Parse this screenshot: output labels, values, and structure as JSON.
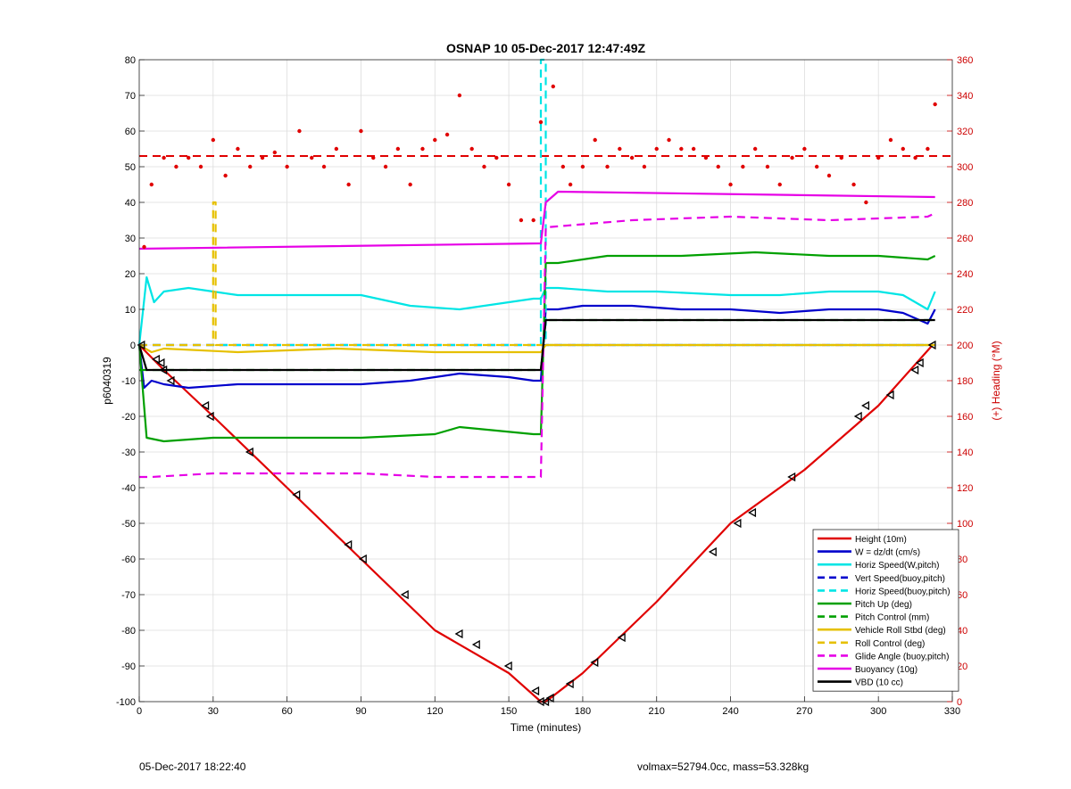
{
  "chart_data": {
    "type": "line",
    "title": "OSNAP 10 05-Dec-2017 12:47:49Z",
    "xlabel": "Time (minutes)",
    "ylabel": "p6040319",
    "ylabel_right": "(+) Heading (°M)",
    "xlim": [
      0,
      330
    ],
    "ylim": [
      -100,
      80
    ],
    "ylim_right": [
      0,
      360
    ],
    "xticks": [
      0,
      30,
      60,
      90,
      120,
      150,
      180,
      210,
      240,
      270,
      300,
      330
    ],
    "yticks": [
      -100,
      -90,
      -80,
      -70,
      -60,
      -50,
      -40,
      -30,
      -20,
      -10,
      0,
      10,
      20,
      30,
      40,
      50,
      60,
      70,
      80
    ],
    "yticks_right": [
      0,
      20,
      40,
      60,
      80,
      100,
      120,
      140,
      160,
      180,
      200,
      220,
      240,
      260,
      280,
      300,
      320,
      340,
      360
    ],
    "grid": true,
    "legend_position": "bottom-right",
    "colors": {
      "red": "#e00000",
      "blue": "#0000cc",
      "cyan": "#00e5e5",
      "green": "#00a000",
      "yellow": "#e6c000",
      "magenta": "#e600e6",
      "black": "#000000",
      "right_axis": "#cc0000"
    },
    "series": [
      {
        "name": "Height (10m)",
        "color": "red",
        "style": "solid",
        "x": [
          0,
          10,
          30,
          60,
          90,
          120,
          150,
          163,
          165,
          180,
          210,
          240,
          270,
          300,
          322
        ],
        "y": [
          0,
          -7,
          -20,
          -40,
          -60,
          -80,
          -92,
          -100,
          -100,
          -92,
          -72,
          -50,
          -35,
          -17,
          0
        ]
      },
      {
        "name": "W = dz/dt (cm/s)",
        "color": "blue",
        "style": "solid",
        "x": [
          0,
          2,
          5,
          10,
          20,
          40,
          60,
          90,
          110,
          130,
          150,
          160,
          163,
          165,
          170,
          180,
          200,
          220,
          240,
          260,
          280,
          300,
          310,
          320,
          323
        ],
        "y": [
          0,
          -12,
          -10,
          -11,
          -12,
          -11,
          -11,
          -11,
          -10,
          -8,
          -9,
          -10,
          -10,
          10,
          10,
          11,
          11,
          10,
          10,
          9,
          10,
          10,
          9,
          6,
          10
        ]
      },
      {
        "name": "Horiz Speed(W,pitch)",
        "color": "cyan",
        "style": "solid",
        "x": [
          0,
          3,
          6,
          10,
          20,
          40,
          60,
          90,
          110,
          130,
          150,
          160,
          163,
          165,
          170,
          190,
          210,
          240,
          260,
          280,
          300,
          310,
          320,
          323
        ],
        "y": [
          0,
          19,
          12,
          15,
          16,
          14,
          14,
          14,
          11,
          10,
          12,
          13,
          13,
          16,
          16,
          15,
          15,
          14,
          14,
          15,
          15,
          14,
          10,
          15
        ]
      },
      {
        "name": "Vert Speed(buoy,pitch)",
        "color": "blue",
        "style": "dashed",
        "x": [
          0,
          163,
          165,
          323
        ],
        "y": [
          0,
          0,
          0,
          0
        ]
      },
      {
        "name": "Horiz Speed(buoy,pitch)",
        "color": "cyan",
        "style": "dashed",
        "x": [
          0,
          163,
          163,
          165,
          165,
          323
        ],
        "y": [
          0,
          0,
          80,
          80,
          0,
          0
        ]
      },
      {
        "name": "Pitch Up (deg)",
        "color": "green",
        "style": "solid",
        "x": [
          0,
          3,
          10,
          30,
          60,
          90,
          120,
          130,
          160,
          163,
          165,
          170,
          190,
          220,
          250,
          280,
          300,
          320,
          323
        ],
        "y": [
          0,
          -26,
          -27,
          -26,
          -26,
          -26,
          -25,
          -23,
          -25,
          -25,
          23,
          23,
          25,
          25,
          26,
          25,
          25,
          24,
          25
        ]
      },
      {
        "name": "Pitch Control (mm)",
        "color": "green",
        "style": "dashed",
        "x": [
          0,
          5,
          163,
          165,
          323
        ],
        "y": [
          -7,
          -7,
          -7,
          7,
          7
        ]
      },
      {
        "name": "Vehicle Roll Stbd (deg)",
        "color": "yellow",
        "style": "solid",
        "x": [
          0,
          5,
          10,
          40,
          80,
          120,
          160,
          163,
          165,
          200,
          240,
          280,
          320,
          323
        ],
        "y": [
          0,
          -2,
          -1,
          -2,
          -1,
          -2,
          -2,
          -2,
          0,
          0,
          0,
          0,
          0,
          0
        ]
      },
      {
        "name": "Roll Control (deg)",
        "color": "yellow",
        "style": "dashed",
        "x": [
          0,
          30,
          30,
          31,
          31,
          163,
          165,
          323
        ],
        "y": [
          0,
          0,
          40,
          40,
          0,
          0,
          0,
          0
        ]
      },
      {
        "name": "Glide Angle (buoy,pitch)",
        "color": "magenta",
        "style": "dashed",
        "x": [
          0,
          5,
          30,
          60,
          90,
          120,
          160,
          163,
          165,
          200,
          240,
          280,
          320,
          323
        ],
        "y": [
          -37,
          -37,
          -36,
          -36,
          -36,
          -37,
          -37,
          -37,
          33,
          35,
          36,
          35,
          36,
          37
        ]
      },
      {
        "name": "Buoyancy (10g)",
        "color": "magenta",
        "style": "solid",
        "x": [
          0,
          163,
          165,
          170,
          323
        ],
        "y": [
          27,
          28.5,
          40,
          43,
          41.5
        ]
      },
      {
        "name": "VBD (10 cc)",
        "color": "black",
        "style": "solid",
        "x": [
          0,
          3,
          163,
          165,
          323
        ],
        "y": [
          0,
          -7,
          -7,
          7,
          7
        ]
      }
    ],
    "heading_points": {
      "name": "Heading",
      "axis": "right",
      "color": "red",
      "marker": "dot",
      "x": [
        2,
        5,
        10,
        15,
        20,
        25,
        30,
        35,
        40,
        45,
        50,
        55,
        60,
        65,
        70,
        75,
        80,
        85,
        90,
        95,
        100,
        105,
        110,
        115,
        120,
        125,
        130,
        135,
        140,
        145,
        150,
        155,
        160,
        163,
        168,
        172,
        175,
        180,
        185,
        190,
        195,
        200,
        205,
        210,
        215,
        220,
        225,
        230,
        235,
        240,
        245,
        250,
        255,
        260,
        265,
        270,
        275,
        280,
        285,
        290,
        295,
        300,
        305,
        310,
        315,
        320,
        323
      ],
      "y": [
        255,
        290,
        305,
        300,
        305,
        300,
        315,
        295,
        310,
        300,
        305,
        308,
        300,
        320,
        305,
        300,
        310,
        290,
        320,
        305,
        300,
        310,
        290,
        310,
        315,
        318,
        340,
        310,
        300,
        305,
        290,
        270,
        270,
        325,
        345,
        300,
        290,
        300,
        315,
        300,
        310,
        305,
        300,
        310,
        315,
        310,
        310,
        305,
        300,
        290,
        300,
        310,
        300,
        290,
        305,
        310,
        300,
        295,
        305,
        290,
        280,
        305,
        315,
        310,
        305,
        310,
        335
      ]
    },
    "heading_reference": {
      "axis": "right",
      "value": 306,
      "style": "dashed",
      "color": "red"
    },
    "markers": {
      "name": "waypoints",
      "series": "Height (10m)",
      "marker": "triangle-left",
      "x": [
        1,
        7,
        9,
        10,
        13,
        27,
        29,
        45,
        64,
        85,
        91,
        108,
        130,
        137,
        150,
        161,
        163,
        165,
        167,
        175,
        185,
        196,
        233,
        243,
        249,
        265,
        292,
        295,
        305,
        315,
        317,
        322
      ],
      "y": [
        0,
        -4,
        -5,
        -7,
        -10,
        -17,
        -20,
        -30,
        -42,
        -56,
        -60,
        -70,
        -81,
        -84,
        -90,
        -97,
        -100,
        -100,
        -99,
        -95,
        -89,
        -82,
        -58,
        -50,
        -47,
        -37,
        -20,
        -17,
        -14,
        -7,
        -5,
        0
      ]
    }
  },
  "footer": {
    "left": "05-Dec-2017 18:22:40",
    "right": "volmax=52794.0cc, mass=53.328kg"
  }
}
